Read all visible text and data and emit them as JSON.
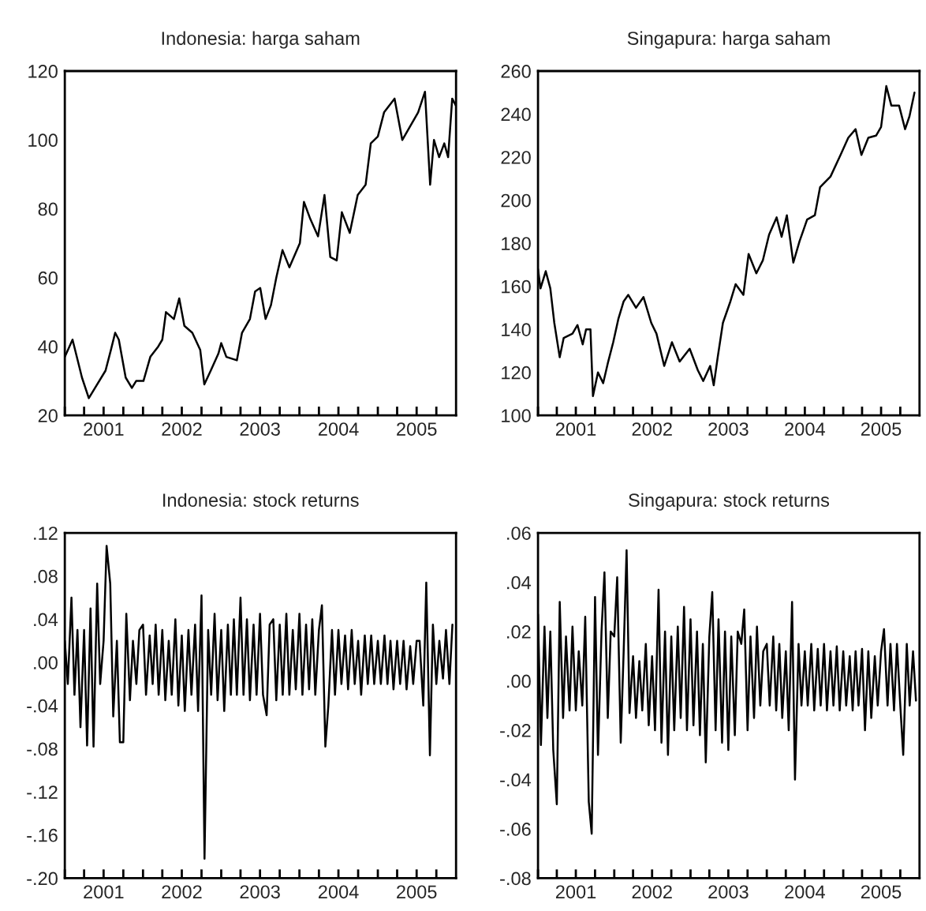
{
  "chart_data": [
    {
      "type": "line",
      "title": "Indonesia: harga saham",
      "x": [
        "2001-01-01",
        "2001-02-06",
        "2001-02-26",
        "2001-03-22",
        "2001-04-23",
        "2001-05-22",
        "2001-07-10",
        "2001-08-04",
        "2001-08-24",
        "2001-09-10",
        "2001-10-12",
        "2001-11-10",
        "2001-11-30",
        "2002-01-03",
        "2002-02-04",
        "2002-03-13",
        "2002-04-01",
        "2002-04-18",
        "2002-05-25",
        "2002-06-19",
        "2002-07-13",
        "2002-08-19",
        "2002-09-25",
        "2002-10-14",
        "2002-11-13",
        "2002-12-19",
        "2003-01-01",
        "2003-01-25",
        "2003-03-15",
        "2003-04-08",
        "2003-05-15",
        "2003-06-08",
        "2003-07-02",
        "2003-07-27",
        "2003-08-21",
        "2003-09-15",
        "2003-10-14",
        "2003-11-15",
        "2004-01-03",
        "2004-01-22",
        "2004-02-21",
        "2004-03-28",
        "2004-04-27",
        "2004-05-24",
        "2004-06-23",
        "2004-07-17",
        "2004-08-23",
        "2004-09-29",
        "2004-11-05",
        "2004-11-29",
        "2005-01-01",
        "2005-01-30",
        "2005-03-20",
        "2005-04-25",
        "2005-06-01",
        "2005-07-08",
        "2005-08-09",
        "2005-09-02",
        "2005-09-20",
        "2005-10-14",
        "2005-11-07",
        "2005-11-25",
        "2005-12-14",
        "2005-12-31"
      ],
      "series": [
        {
          "color": "#000000",
          "values": [
            37,
            42,
            37,
            31,
            25,
            28,
            33,
            39,
            44,
            42,
            31,
            28,
            30,
            30,
            37,
            40,
            42,
            50,
            48,
            54,
            46,
            44,
            39,
            29,
            33,
            38,
            41,
            37,
            36,
            44,
            48,
            56,
            57,
            48,
            52,
            60,
            68,
            63,
            70,
            82,
            77,
            72,
            84,
            66,
            65,
            79,
            73,
            84,
            87,
            99,
            101,
            108,
            112,
            100,
            104,
            108,
            114,
            87,
            100,
            95,
            99,
            95,
            112,
            110
          ]
        }
      ],
      "xlim": [
        "2001-01-01",
        "2006-01-01"
      ],
      "ylim": [
        20,
        120
      ],
      "yticks": [
        20,
        40,
        60,
        80,
        100,
        120
      ],
      "xticks": [
        {
          "value": "2001-01-01",
          "label": null
        },
        {
          "value": "2001-04-01",
          "label": null
        },
        {
          "value": "2001-07-01",
          "label": "2001"
        },
        {
          "value": "2001-10-01",
          "label": null
        },
        {
          "value": "2002-01-01",
          "label": null
        },
        {
          "value": "2002-04-01",
          "label": null
        },
        {
          "value": "2002-07-01",
          "label": "2002"
        },
        {
          "value": "2002-10-01",
          "label": null
        },
        {
          "value": "2003-01-01",
          "label": null
        },
        {
          "value": "2003-04-01",
          "label": null
        },
        {
          "value": "2003-07-01",
          "label": "2003"
        },
        {
          "value": "2003-10-01",
          "label": null
        },
        {
          "value": "2004-01-01",
          "label": null
        },
        {
          "value": "2004-04-01",
          "label": null
        },
        {
          "value": "2004-07-01",
          "label": "2004"
        },
        {
          "value": "2004-10-01",
          "label": null
        },
        {
          "value": "2005-01-01",
          "label": null
        },
        {
          "value": "2005-04-01",
          "label": null
        },
        {
          "value": "2005-07-01",
          "label": "2005"
        },
        {
          "value": "2005-10-01",
          "label": null
        }
      ]
    },
    {
      "type": "line",
      "title": "Singapura: harga saham",
      "x": [
        "2001-01-01",
        "2001-01-13",
        "2001-02-07",
        "2001-03-01",
        "2001-03-20",
        "2001-04-15",
        "2001-05-04",
        "2001-06-15",
        "2001-07-09",
        "2001-08-03",
        "2001-08-19",
        "2001-09-09",
        "2001-09-21",
        "2001-10-15",
        "2001-11-09",
        "2001-12-03",
        "2001-12-27",
        "2002-01-21",
        "2002-02-15",
        "2002-03-09",
        "2002-04-15",
        "2002-05-21",
        "2002-06-27",
        "2002-07-22",
        "2002-08-28",
        "2002-10-04",
        "2002-11-10",
        "2002-12-28",
        "2003-02-05",
        "2003-03-03",
        "2003-04-05",
        "2003-04-22",
        "2003-05-11",
        "2003-06-05",
        "2003-07-11",
        "2003-08-05",
        "2003-09-11",
        "2003-10-06",
        "2003-11-12",
        "2003-12-13",
        "2004-01-12",
        "2004-02-17",
        "2004-03-12",
        "2004-04-06",
        "2004-05-07",
        "2004-06-06",
        "2004-07-12",
        "2004-08-18",
        "2004-09-12",
        "2004-11-01",
        "2004-12-19",
        "2005-01-25",
        "2005-03-01",
        "2005-03-29",
        "2005-05-01",
        "2005-06-07",
        "2005-07-01",
        "2005-07-26",
        "2005-08-19",
        "2005-09-25",
        "2005-10-24",
        "2005-11-14",
        "2005-12-08"
      ],
      "series": [
        {
          "color": "#000000",
          "values": [
            168,
            159,
            167,
            159,
            143,
            127,
            136,
            138,
            142,
            133,
            140,
            140,
            109,
            120,
            115,
            125,
            134,
            145,
            153,
            156,
            150,
            155,
            143,
            138,
            123,
            134,
            125,
            131,
            121,
            116,
            123,
            114,
            127,
            143,
            153,
            161,
            156,
            175,
            166,
            172,
            184,
            192,
            183,
            193,
            171,
            181,
            191,
            193,
            206,
            211,
            221,
            229,
            233,
            221,
            229,
            230,
            234,
            253,
            244,
            244,
            233,
            239,
            250
          ]
        }
      ],
      "xlim": [
        "2001-01-01",
        "2006-01-01"
      ],
      "ylim": [
        100,
        260
      ],
      "yticks": [
        100,
        120,
        140,
        160,
        180,
        200,
        220,
        240,
        260
      ],
      "xticks": [
        {
          "value": "2001-01-01",
          "label": null
        },
        {
          "value": "2001-04-01",
          "label": null
        },
        {
          "value": "2001-07-01",
          "label": "2001"
        },
        {
          "value": "2001-10-01",
          "label": null
        },
        {
          "value": "2002-01-01",
          "label": null
        },
        {
          "value": "2002-04-01",
          "label": null
        },
        {
          "value": "2002-07-01",
          "label": "2002"
        },
        {
          "value": "2002-10-01",
          "label": null
        },
        {
          "value": "2003-01-01",
          "label": null
        },
        {
          "value": "2003-04-01",
          "label": null
        },
        {
          "value": "2003-07-01",
          "label": "2003"
        },
        {
          "value": "2003-10-01",
          "label": null
        },
        {
          "value": "2004-01-01",
          "label": null
        },
        {
          "value": "2004-04-01",
          "label": null
        },
        {
          "value": "2004-07-01",
          "label": "2004"
        },
        {
          "value": "2004-10-01",
          "label": null
        },
        {
          "value": "2005-01-01",
          "label": null
        },
        {
          "value": "2005-04-01",
          "label": null
        },
        {
          "value": "2005-07-01",
          "label": "2005"
        },
        {
          "value": "2005-10-01",
          "label": null
        }
      ]
    },
    {
      "type": "line",
      "title": "Indonesia: stock returns",
      "x": [
        "2001-01-01",
        "2001-01-15",
        "2001-02-01",
        "2001-02-15",
        "2001-03-01",
        "2001-03-15",
        "2001-04-01",
        "2001-04-15",
        "2001-05-01",
        "2001-05-15",
        "2001-06-01",
        "2001-06-15",
        "2001-07-01",
        "2001-07-15",
        "2001-08-01",
        "2001-08-15",
        "2001-09-01",
        "2001-09-15",
        "2001-10-01",
        "2001-10-15",
        "2001-11-01",
        "2001-11-15",
        "2001-12-01",
        "2001-12-15",
        "2002-01-01",
        "2002-01-15",
        "2002-02-01",
        "2002-02-15",
        "2002-03-01",
        "2002-03-15",
        "2002-04-01",
        "2002-04-15",
        "2002-05-01",
        "2002-05-15",
        "2002-06-01",
        "2002-06-15",
        "2002-07-01",
        "2002-07-15",
        "2002-08-01",
        "2002-08-15",
        "2002-09-01",
        "2002-09-15",
        "2002-10-01",
        "2002-10-15",
        "2002-11-01",
        "2002-11-15",
        "2002-12-01",
        "2002-12-15",
        "2003-01-01",
        "2003-01-15",
        "2003-02-01",
        "2003-02-15",
        "2003-03-01",
        "2003-03-15",
        "2003-04-01",
        "2003-04-15",
        "2003-05-01",
        "2003-05-15",
        "2003-06-01",
        "2003-06-15",
        "2003-07-01",
        "2003-07-15",
        "2003-08-01",
        "2003-08-15",
        "2003-09-01",
        "2003-09-15",
        "2003-10-01",
        "2003-10-15",
        "2003-11-01",
        "2003-11-15",
        "2003-12-01",
        "2003-12-15",
        "2004-01-01",
        "2004-01-15",
        "2004-02-01",
        "2004-02-15",
        "2004-03-01",
        "2004-03-15",
        "2004-04-01",
        "2004-04-15",
        "2004-05-01",
        "2004-05-15",
        "2004-06-01",
        "2004-06-15",
        "2004-07-01",
        "2004-07-15",
        "2004-08-01",
        "2004-08-15",
        "2004-09-01",
        "2004-09-15",
        "2004-10-01",
        "2004-10-15",
        "2004-11-01",
        "2004-11-15",
        "2004-12-01",
        "2004-12-15",
        "2005-01-01",
        "2005-01-15",
        "2005-02-01",
        "2005-02-15",
        "2005-03-01",
        "2005-03-15",
        "2005-04-01",
        "2005-04-15",
        "2005-05-01",
        "2005-05-15",
        "2005-06-01",
        "2005-06-15",
        "2005-07-01",
        "2005-07-15",
        "2005-08-01",
        "2005-08-15",
        "2005-09-01",
        "2005-09-15",
        "2005-10-01",
        "2005-10-15",
        "2005-11-01",
        "2005-11-15",
        "2005-12-01",
        "2005-12-15"
      ],
      "series": [
        {
          "color": "#000000",
          "values": [
            0.02,
            -0.02,
            0.06,
            -0.03,
            0.03,
            -0.06,
            0.03,
            -0.077,
            0.05,
            -0.078,
            0.073,
            -0.02,
            0.02,
            0.108,
            0.073,
            -0.05,
            0.02,
            -0.074,
            -0.074,
            0.045,
            -0.035,
            0.02,
            -0.02,
            0.03,
            0.035,
            -0.03,
            0.025,
            -0.02,
            0.035,
            -0.03,
            0.03,
            -0.035,
            0.02,
            -0.03,
            0.04,
            -0.04,
            0.025,
            -0.045,
            0.03,
            -0.03,
            0.035,
            -0.045,
            0.062,
            -0.182,
            0.03,
            -0.03,
            0.045,
            -0.035,
            0.03,
            -0.045,
            0.035,
            -0.03,
            0.04,
            -0.03,
            0.06,
            -0.03,
            0.04,
            -0.035,
            0.035,
            -0.03,
            0.045,
            -0.03,
            -0.049,
            0.035,
            0.04,
            -0.035,
            0.035,
            -0.03,
            0.045,
            -0.03,
            0.03,
            -0.025,
            0.045,
            -0.03,
            0.035,
            -0.025,
            0.04,
            -0.03,
            0.03,
            0.053,
            -0.078,
            -0.04,
            0.03,
            -0.03,
            0.03,
            -0.02,
            0.025,
            -0.025,
            0.03,
            -0.02,
            0.02,
            -0.03,
            0.025,
            -0.02,
            0.025,
            -0.02,
            0.02,
            -0.02,
            0.025,
            -0.02,
            0.02,
            -0.025,
            0.02,
            -0.02,
            0.02,
            -0.025,
            0.015,
            -0.02,
            0.02,
            0.02,
            -0.04,
            0.074,
            -0.086,
            0.035,
            -0.02,
            0.02,
            -0.015,
            0.03,
            -0.02,
            0.035
          ]
        }
      ],
      "xlim": [
        "2001-01-01",
        "2006-01-01"
      ],
      "ylim": [
        -0.2,
        0.12
      ],
      "yticks": [
        {
          "value": -0.2,
          "label": "-.20"
        },
        {
          "value": -0.16,
          "label": "-.16"
        },
        {
          "value": -0.12,
          "label": "-.12"
        },
        {
          "value": -0.08,
          "label": "-.08"
        },
        {
          "value": -0.04,
          "label": "-.04"
        },
        {
          "value": 0,
          "label": ".00"
        },
        {
          "value": 0.04,
          "label": ".04"
        },
        {
          "value": 0.08,
          "label": ".08"
        },
        {
          "value": 0.12,
          "label": ".12"
        }
      ],
      "xticks": [
        {
          "value": "2001-01-01",
          "label": null
        },
        {
          "value": "2001-04-01",
          "label": null
        },
        {
          "value": "2001-07-01",
          "label": "2001"
        },
        {
          "value": "2001-10-01",
          "label": null
        },
        {
          "value": "2002-01-01",
          "label": null
        },
        {
          "value": "2002-04-01",
          "label": null
        },
        {
          "value": "2002-07-01",
          "label": "2002"
        },
        {
          "value": "2002-10-01",
          "label": null
        },
        {
          "value": "2003-01-01",
          "label": null
        },
        {
          "value": "2003-04-01",
          "label": null
        },
        {
          "value": "2003-07-01",
          "label": "2003"
        },
        {
          "value": "2003-10-01",
          "label": null
        },
        {
          "value": "2004-01-01",
          "label": null
        },
        {
          "value": "2004-04-01",
          "label": null
        },
        {
          "value": "2004-07-01",
          "label": "2004"
        },
        {
          "value": "2004-10-01",
          "label": null
        },
        {
          "value": "2005-01-01",
          "label": null
        },
        {
          "value": "2005-04-01",
          "label": null
        },
        {
          "value": "2005-07-01",
          "label": "2005"
        },
        {
          "value": "2005-10-01",
          "label": null
        }
      ]
    },
    {
      "type": "line",
      "title": "Singapura: stock returns",
      "x": [
        "2001-01-01",
        "2001-01-15",
        "2001-02-01",
        "2001-02-15",
        "2001-03-01",
        "2001-03-15",
        "2001-04-01",
        "2001-04-15",
        "2001-05-01",
        "2001-05-15",
        "2001-06-01",
        "2001-06-15",
        "2001-07-01",
        "2001-07-15",
        "2001-08-01",
        "2001-08-15",
        "2001-09-01",
        "2001-09-15",
        "2001-10-01",
        "2001-10-15",
        "2001-11-01",
        "2001-11-15",
        "2001-12-01",
        "2001-12-15",
        "2002-01-01",
        "2002-01-15",
        "2002-02-01",
        "2002-02-15",
        "2002-03-01",
        "2002-03-15",
        "2002-04-01",
        "2002-04-15",
        "2002-05-01",
        "2002-05-15",
        "2002-06-01",
        "2002-06-15",
        "2002-07-01",
        "2002-07-15",
        "2002-08-01",
        "2002-08-15",
        "2002-09-01",
        "2002-09-15",
        "2002-10-01",
        "2002-10-15",
        "2002-11-01",
        "2002-11-15",
        "2002-12-01",
        "2002-12-15",
        "2003-01-01",
        "2003-01-15",
        "2003-02-01",
        "2003-02-15",
        "2003-03-01",
        "2003-03-15",
        "2003-04-01",
        "2003-04-15",
        "2003-05-01",
        "2003-05-15",
        "2003-06-01",
        "2003-06-15",
        "2003-07-01",
        "2003-07-15",
        "2003-08-01",
        "2003-08-15",
        "2003-09-01",
        "2003-09-15",
        "2003-10-01",
        "2003-10-15",
        "2003-11-01",
        "2003-11-15",
        "2003-12-01",
        "2003-12-15",
        "2004-01-01",
        "2004-01-15",
        "2004-02-01",
        "2004-02-15",
        "2004-03-01",
        "2004-03-15",
        "2004-04-01",
        "2004-04-15",
        "2004-05-01",
        "2004-05-15",
        "2004-06-01",
        "2004-06-15",
        "2004-07-01",
        "2004-07-15",
        "2004-08-01",
        "2004-08-15",
        "2004-09-01",
        "2004-09-15",
        "2004-10-01",
        "2004-10-15",
        "2004-11-01",
        "2004-11-15",
        "2004-12-01",
        "2004-12-15",
        "2005-01-01",
        "2005-01-15",
        "2005-02-01",
        "2005-02-15",
        "2005-03-01",
        "2005-03-15",
        "2005-04-01",
        "2005-04-15",
        "2005-05-01",
        "2005-05-15",
        "2005-06-01",
        "2005-06-15",
        "2005-07-01",
        "2005-07-15",
        "2005-08-01",
        "2005-08-15",
        "2005-09-01",
        "2005-09-15",
        "2005-10-01",
        "2005-10-15",
        "2005-11-01",
        "2005-11-15",
        "2005-12-01",
        "2005-12-15"
      ],
      "series": [
        {
          "color": "#000000",
          "values": [
            0.027,
            -0.026,
            0.022,
            -0.015,
            0.02,
            -0.028,
            -0.05,
            0.032,
            -0.015,
            0.018,
            -0.012,
            0.022,
            -0.012,
            0.012,
            -0.01,
            0.026,
            -0.049,
            -0.062,
            0.034,
            -0.03,
            0.02,
            0.044,
            -0.015,
            0.02,
            0.018,
            0.042,
            -0.025,
            0.012,
            0.053,
            -0.013,
            0.01,
            -0.015,
            0.008,
            -0.012,
            0.015,
            -0.018,
            0.01,
            -0.02,
            0.037,
            -0.025,
            0.02,
            -0.03,
            0.018,
            -0.02,
            0.022,
            -0.015,
            0.03,
            -0.02,
            0.025,
            -0.018,
            0.02,
            -0.022,
            0.015,
            -0.033,
            0.018,
            0.036,
            -0.02,
            0.025,
            -0.025,
            0.02,
            -0.028,
            0.018,
            -0.022,
            0.02,
            0.015,
            0.029,
            -0.02,
            0.018,
            -0.015,
            0.022,
            -0.01,
            0.012,
            0.015,
            -0.01,
            0.018,
            -0.012,
            0.015,
            -0.015,
            0.012,
            -0.02,
            0.032,
            -0.04,
            0.015,
            -0.01,
            0.012,
            -0.01,
            0.015,
            -0.012,
            0.013,
            -0.01,
            0.015,
            -0.012,
            0.012,
            -0.01,
            0.014,
            -0.012,
            0.012,
            -0.01,
            0.01,
            -0.012,
            0.012,
            -0.01,
            0.013,
            -0.02,
            0.012,
            -0.015,
            0.01,
            -0.01,
            0.012,
            0.021,
            -0.01,
            0.015,
            -0.012,
            0.015,
            -0.01,
            -0.03,
            0.015,
            -0.01,
            0.012,
            -0.008
          ]
        }
      ],
      "xlim": [
        "2001-01-01",
        "2006-01-01"
      ],
      "ylim": [
        -0.08,
        0.06
      ],
      "yticks": [
        {
          "value": -0.08,
          "label": "-.08"
        },
        {
          "value": -0.06,
          "label": "-.06"
        },
        {
          "value": -0.04,
          "label": "-.04"
        },
        {
          "value": -0.02,
          "label": "-.02"
        },
        {
          "value": 0,
          "label": ".00"
        },
        {
          "value": 0.02,
          "label": ".02"
        },
        {
          "value": 0.04,
          "label": ".04"
        },
        {
          "value": 0.06,
          "label": ".06"
        }
      ],
      "xticks": [
        {
          "value": "2001-01-01",
          "label": null
        },
        {
          "value": "2001-04-01",
          "label": null
        },
        {
          "value": "2001-07-01",
          "label": "2001"
        },
        {
          "value": "2001-10-01",
          "label": null
        },
        {
          "value": "2002-01-01",
          "label": null
        },
        {
          "value": "2002-04-01",
          "label": null
        },
        {
          "value": "2002-07-01",
          "label": "2002"
        },
        {
          "value": "2002-10-01",
          "label": null
        },
        {
          "value": "2003-01-01",
          "label": null
        },
        {
          "value": "2003-04-01",
          "label": null
        },
        {
          "value": "2003-07-01",
          "label": "2003"
        },
        {
          "value": "2003-10-01",
          "label": null
        },
        {
          "value": "2004-01-01",
          "label": null
        },
        {
          "value": "2004-04-01",
          "label": null
        },
        {
          "value": "2004-07-01",
          "label": "2004"
        },
        {
          "value": "2004-10-01",
          "label": null
        },
        {
          "value": "2005-01-01",
          "label": null
        },
        {
          "value": "2005-04-01",
          "label": null
        },
        {
          "value": "2005-07-01",
          "label": "2005"
        },
        {
          "value": "2005-10-01",
          "label": null
        }
      ]
    }
  ]
}
